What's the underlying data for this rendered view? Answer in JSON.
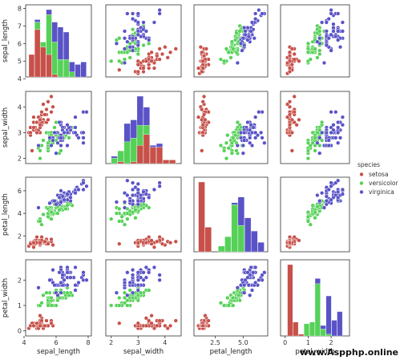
{
  "chart_data": {
    "type": "scatter",
    "subtype": "pairplot",
    "grid": false,
    "legend_placement": "right",
    "legend_title": "species",
    "variables": [
      "sepal_length",
      "sepal_width",
      "petal_length",
      "petal_width"
    ],
    "axis_labels": {
      "sepal_length": "sepal_length",
      "sepal_width": "sepal_width",
      "petal_length": "petal_length",
      "petal_width": "petal_width"
    },
    "ranges": {
      "sepal_length": [
        4.1,
        8.2
      ],
      "sepal_width": [
        1.8,
        4.6
      ],
      "petal_length": [
        0.6,
        7.2
      ],
      "petal_width": [
        -0.2,
        2.8
      ]
    },
    "row_ticks": {
      "sepal_length": [
        "8",
        "7",
        "6",
        "5",
        "4"
      ],
      "sepal_width": [
        "4",
        "3",
        "2"
      ],
      "petal_length": [
        "6",
        "4",
        "2"
      ],
      "petal_width": [
        "2",
        "1",
        "0"
      ]
    },
    "col_ticks": {
      "sepal_length": [
        "4",
        "6",
        "8"
      ],
      "sepal_width": [
        "2",
        "3",
        "4"
      ],
      "petal_length": [
        "2.5",
        "5.0"
      ],
      "petal_width": [
        "0",
        "1",
        "2"
      ]
    },
    "row_tick_values": {
      "sepal_length": [
        8,
        7,
        6,
        5,
        4
      ],
      "sepal_width": [
        4,
        3,
        2
      ],
      "petal_length": [
        6,
        4,
        2
      ],
      "petal_width": [
        2,
        1,
        0
      ]
    },
    "col_tick_values": {
      "sepal_length": [
        4,
        6,
        8
      ],
      "sepal_width": [
        2,
        3,
        4
      ],
      "petal_length": [
        2.5,
        5.0
      ],
      "petal_width": [
        0,
        1,
        2
      ]
    },
    "series": [
      {
        "name": "setosa",
        "color": "#c7514a",
        "points": [
          [
            5.1,
            3.5,
            1.4,
            0.2
          ],
          [
            4.9,
            3.0,
            1.4,
            0.2
          ],
          [
            4.7,
            3.2,
            1.3,
            0.2
          ],
          [
            4.6,
            3.1,
            1.5,
            0.2
          ],
          [
            5.0,
            3.6,
            1.4,
            0.2
          ],
          [
            5.4,
            3.9,
            1.7,
            0.4
          ],
          [
            4.6,
            3.4,
            1.4,
            0.3
          ],
          [
            5.0,
            3.4,
            1.5,
            0.2
          ],
          [
            4.4,
            2.9,
            1.4,
            0.2
          ],
          [
            4.9,
            3.1,
            1.5,
            0.1
          ],
          [
            5.4,
            3.7,
            1.5,
            0.2
          ],
          [
            4.8,
            3.4,
            1.6,
            0.2
          ],
          [
            4.8,
            3.0,
            1.4,
            0.1
          ],
          [
            4.3,
            3.0,
            1.1,
            0.1
          ],
          [
            5.8,
            4.0,
            1.2,
            0.2
          ],
          [
            5.7,
            4.4,
            1.5,
            0.4
          ],
          [
            5.4,
            3.9,
            1.3,
            0.4
          ],
          [
            5.1,
            3.5,
            1.4,
            0.3
          ],
          [
            5.7,
            3.8,
            1.7,
            0.3
          ],
          [
            5.1,
            3.8,
            1.5,
            0.3
          ],
          [
            5.4,
            3.4,
            1.7,
            0.2
          ],
          [
            5.1,
            3.7,
            1.5,
            0.4
          ],
          [
            4.6,
            3.6,
            1.0,
            0.2
          ],
          [
            5.1,
            3.3,
            1.7,
            0.5
          ],
          [
            4.8,
            3.4,
            1.9,
            0.2
          ],
          [
            5.0,
            3.0,
            1.6,
            0.2
          ],
          [
            5.0,
            3.4,
            1.6,
            0.4
          ],
          [
            5.2,
            3.5,
            1.5,
            0.2
          ],
          [
            5.2,
            3.4,
            1.4,
            0.2
          ],
          [
            4.7,
            3.2,
            1.6,
            0.2
          ],
          [
            4.8,
            3.1,
            1.6,
            0.2
          ],
          [
            5.4,
            3.4,
            1.5,
            0.4
          ],
          [
            5.2,
            4.1,
            1.5,
            0.1
          ],
          [
            5.5,
            4.2,
            1.4,
            0.2
          ],
          [
            4.9,
            3.1,
            1.5,
            0.2
          ],
          [
            5.0,
            3.2,
            1.2,
            0.2
          ],
          [
            5.5,
            3.5,
            1.3,
            0.2
          ],
          [
            4.9,
            3.6,
            1.4,
            0.1
          ],
          [
            4.4,
            3.0,
            1.3,
            0.2
          ],
          [
            5.1,
            3.4,
            1.5,
            0.2
          ],
          [
            5.0,
            3.5,
            1.3,
            0.3
          ],
          [
            4.5,
            2.3,
            1.3,
            0.3
          ],
          [
            4.4,
            3.2,
            1.3,
            0.2
          ],
          [
            5.0,
            3.5,
            1.6,
            0.6
          ],
          [
            5.1,
            3.8,
            1.9,
            0.4
          ],
          [
            4.8,
            3.0,
            1.4,
            0.3
          ],
          [
            5.1,
            3.8,
            1.6,
            0.2
          ],
          [
            4.6,
            3.2,
            1.4,
            0.2
          ],
          [
            5.3,
            3.7,
            1.5,
            0.2
          ],
          [
            5.0,
            3.3,
            1.4,
            0.2
          ]
        ]
      },
      {
        "name": "versicolor",
        "color": "#56d158",
        "points": [
          [
            7.0,
            3.2,
            4.7,
            1.4
          ],
          [
            6.4,
            3.2,
            4.5,
            1.5
          ],
          [
            6.9,
            3.1,
            4.9,
            1.5
          ],
          [
            5.5,
            2.3,
            4.0,
            1.3
          ],
          [
            6.5,
            2.8,
            4.6,
            1.5
          ],
          [
            5.7,
            2.8,
            4.5,
            1.3
          ],
          [
            6.3,
            3.3,
            4.7,
            1.6
          ],
          [
            4.9,
            2.4,
            3.3,
            1.0
          ],
          [
            6.6,
            2.9,
            4.6,
            1.3
          ],
          [
            5.2,
            2.7,
            3.9,
            1.4
          ],
          [
            5.0,
            2.0,
            3.5,
            1.0
          ],
          [
            5.9,
            3.0,
            4.2,
            1.5
          ],
          [
            6.0,
            2.2,
            4.0,
            1.0
          ],
          [
            6.1,
            2.9,
            4.7,
            1.4
          ],
          [
            5.6,
            2.9,
            3.6,
            1.3
          ],
          [
            6.7,
            3.1,
            4.4,
            1.4
          ],
          [
            5.6,
            3.0,
            4.5,
            1.5
          ],
          [
            5.8,
            2.7,
            4.1,
            1.0
          ],
          [
            6.2,
            2.2,
            4.5,
            1.5
          ],
          [
            5.6,
            2.5,
            3.9,
            1.1
          ],
          [
            5.9,
            3.2,
            4.8,
            1.8
          ],
          [
            6.1,
            2.8,
            4.0,
            1.3
          ],
          [
            6.3,
            2.5,
            4.9,
            1.5
          ],
          [
            6.1,
            2.8,
            4.7,
            1.2
          ],
          [
            6.4,
            2.9,
            4.3,
            1.3
          ],
          [
            6.6,
            3.0,
            4.4,
            1.4
          ],
          [
            6.8,
            2.8,
            4.8,
            1.4
          ],
          [
            6.7,
            3.0,
            5.0,
            1.7
          ],
          [
            6.0,
            2.9,
            4.5,
            1.5
          ],
          [
            5.7,
            2.6,
            3.5,
            1.0
          ],
          [
            5.5,
            2.4,
            3.8,
            1.1
          ],
          [
            5.5,
            2.4,
            3.7,
            1.0
          ],
          [
            5.8,
            2.7,
            3.9,
            1.2
          ],
          [
            6.0,
            2.7,
            5.1,
            1.6
          ],
          [
            5.4,
            3.0,
            4.5,
            1.5
          ],
          [
            6.0,
            3.4,
            4.5,
            1.6
          ],
          [
            6.7,
            3.1,
            4.7,
            1.5
          ],
          [
            6.3,
            2.3,
            4.4,
            1.3
          ],
          [
            5.6,
            3.0,
            4.1,
            1.3
          ],
          [
            5.5,
            2.5,
            4.0,
            1.3
          ],
          [
            5.5,
            2.6,
            4.4,
            1.2
          ],
          [
            6.1,
            3.0,
            4.6,
            1.4
          ],
          [
            5.8,
            2.6,
            4.0,
            1.2
          ],
          [
            5.0,
            2.3,
            3.3,
            1.0
          ],
          [
            5.6,
            2.7,
            4.2,
            1.3
          ],
          [
            5.7,
            3.0,
            4.2,
            1.2
          ],
          [
            5.7,
            2.9,
            4.2,
            1.3
          ],
          [
            6.2,
            2.9,
            4.3,
            1.3
          ],
          [
            5.1,
            2.5,
            3.0,
            1.1
          ],
          [
            5.7,
            2.8,
            4.1,
            1.3
          ]
        ]
      },
      {
        "name": "virginica",
        "color": "#5a53c7",
        "points": [
          [
            6.3,
            3.3,
            6.0,
            2.5
          ],
          [
            5.8,
            2.7,
            5.1,
            1.9
          ],
          [
            7.1,
            3.0,
            5.9,
            2.1
          ],
          [
            6.3,
            2.9,
            5.6,
            1.8
          ],
          [
            6.5,
            3.0,
            5.8,
            2.2
          ],
          [
            7.6,
            3.0,
            6.6,
            2.1
          ],
          [
            4.9,
            2.5,
            4.5,
            1.7
          ],
          [
            7.3,
            2.9,
            6.3,
            1.8
          ],
          [
            6.7,
            2.5,
            5.8,
            1.8
          ],
          [
            7.2,
            3.6,
            6.1,
            2.5
          ],
          [
            6.5,
            3.2,
            5.1,
            2.0
          ],
          [
            6.4,
            2.7,
            5.3,
            1.9
          ],
          [
            6.8,
            3.0,
            5.5,
            2.1
          ],
          [
            5.7,
            2.5,
            5.0,
            2.0
          ],
          [
            5.8,
            2.8,
            5.1,
            2.4
          ],
          [
            6.4,
            3.2,
            5.3,
            2.3
          ],
          [
            6.5,
            3.0,
            5.5,
            1.8
          ],
          [
            7.7,
            3.8,
            6.7,
            2.2
          ],
          [
            7.7,
            2.6,
            6.9,
            2.3
          ],
          [
            6.0,
            2.2,
            5.0,
            1.5
          ],
          [
            6.9,
            3.2,
            5.7,
            2.3
          ],
          [
            5.6,
            2.8,
            4.9,
            2.0
          ],
          [
            7.7,
            2.8,
            6.7,
            2.0
          ],
          [
            6.3,
            2.7,
            4.9,
            1.8
          ],
          [
            6.7,
            3.3,
            5.7,
            2.1
          ],
          [
            7.2,
            3.2,
            6.0,
            1.8
          ],
          [
            6.2,
            2.8,
            4.8,
            1.8
          ],
          [
            6.1,
            3.0,
            4.9,
            1.8
          ],
          [
            6.4,
            2.8,
            5.6,
            2.1
          ],
          [
            7.2,
            3.0,
            5.8,
            1.6
          ],
          [
            7.4,
            2.8,
            6.1,
            1.9
          ],
          [
            7.9,
            3.8,
            6.4,
            2.0
          ],
          [
            6.4,
            2.8,
            5.6,
            2.2
          ],
          [
            6.3,
            2.8,
            5.1,
            1.5
          ],
          [
            6.1,
            2.6,
            5.6,
            1.4
          ],
          [
            7.7,
            3.0,
            6.1,
            2.3
          ],
          [
            6.3,
            3.4,
            5.6,
            2.4
          ],
          [
            6.4,
            3.1,
            5.5,
            1.8
          ],
          [
            6.0,
            3.0,
            4.8,
            1.8
          ],
          [
            6.9,
            3.1,
            5.4,
            2.1
          ],
          [
            6.7,
            3.1,
            5.6,
            2.4
          ],
          [
            6.9,
            3.1,
            5.1,
            2.3
          ],
          [
            5.8,
            2.7,
            5.1,
            1.9
          ],
          [
            6.8,
            3.2,
            5.9,
            2.3
          ],
          [
            6.7,
            3.3,
            5.7,
            2.5
          ],
          [
            6.7,
            3.0,
            5.2,
            2.3
          ],
          [
            6.3,
            2.5,
            5.0,
            1.9
          ],
          [
            6.5,
            3.0,
            5.2,
            2.0
          ],
          [
            6.2,
            3.4,
            5.4,
            2.3
          ],
          [
            5.9,
            3.0,
            5.1,
            1.8
          ]
        ]
      }
    ]
  },
  "watermark": "www.Aspphp.online"
}
